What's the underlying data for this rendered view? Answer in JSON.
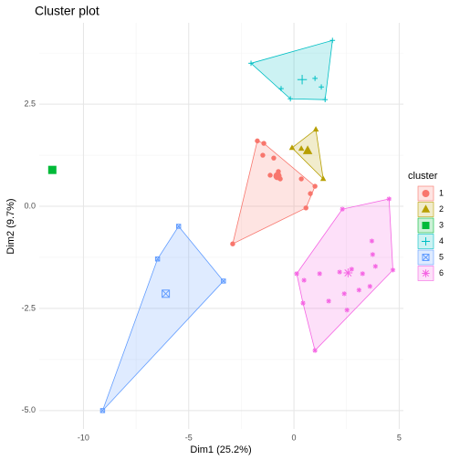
{
  "chart_data": {
    "type": "scatter",
    "title": "Cluster plot",
    "x_label": "Dim1 (25.2%)",
    "y_label": "Dim2 (9.7%)",
    "xlim": [
      -12.1,
      5.2
    ],
    "ylim": [
      -5.45,
      4.49
    ],
    "xticks": [
      -10,
      -5,
      0,
      5
    ],
    "yticks": [
      {
        "value": -5,
        "label": "-5.0"
      },
      2.5,
      {
        "value": 0,
        "label": "0.0"
      },
      -2.5
    ],
    "grid": true,
    "legend_title": "cluster",
    "legend_position": "right",
    "series": [
      {
        "name": "1",
        "color": "#F8766D",
        "marker": "circle",
        "x": [
          -1.74,
          -1.43,
          1.0,
          0.78,
          0.57,
          -2.91,
          -1.48,
          -0.96,
          -0.74,
          -0.65,
          -1.13,
          0.35
        ],
        "y": [
          1.6,
          1.54,
          0.49,
          0.31,
          -0.04,
          -0.92,
          1.25,
          1.18,
          0.85,
          0.67,
          0.76,
          0.67
        ],
        "center_x": -0.78,
        "center_y": 0.74
      },
      {
        "name": "2",
        "color": "#B79F00",
        "marker": "triangle",
        "x": [
          -0.09,
          1.04,
          1.39,
          0.35
        ],
        "y": [
          1.43,
          1.88,
          0.67,
          1.41
        ],
        "center_x": 0.65,
        "center_y": 1.36
      },
      {
        "name": "3",
        "color": "#00BA38",
        "marker": "square",
        "x": [
          -11.48
        ],
        "y": [
          0.89
        ],
        "center_x": -11.48,
        "center_y": 0.89
      },
      {
        "name": "4",
        "color": "#00BFC4",
        "marker": "plus",
        "x": [
          -2.04,
          1.83,
          1.48,
          -0.17,
          -0.61,
          1.0,
          1.3
        ],
        "y": [
          3.5,
          4.06,
          2.61,
          2.63,
          2.88,
          3.13,
          2.92
        ],
        "center_x": 0.39,
        "center_y": 3.1
      },
      {
        "name": "5",
        "color": "#619CFF",
        "marker": "boxx",
        "x": [
          -5.48,
          -3.35,
          -9.09,
          -6.48
        ],
        "y": [
          -0.49,
          -1.83,
          -5.0,
          -1.29
        ],
        "center_x": -6.09,
        "center_y": -2.14
      },
      {
        "name": "6",
        "color": "#F564E3",
        "marker": "star",
        "x": [
          4.52,
          2.3,
          0.13,
          1.0,
          4.7,
          3.7,
          3.74,
          3.87,
          3.26,
          3.61,
          3.09,
          2.39,
          1.65,
          0.48,
          0.43,
          2.52,
          2.17,
          2.74,
          1.22
        ],
        "y": [
          0.18,
          -0.07,
          -1.65,
          -3.53,
          -1.56,
          -0.85,
          -1.18,
          -1.47,
          -1.65,
          -1.96,
          -2.05,
          -2.14,
          -2.32,
          -1.81,
          -2.37,
          -2.54,
          -1.61,
          -1.54,
          -1.65
        ],
        "center_x": 2.57,
        "center_y": -1.63
      }
    ]
  }
}
